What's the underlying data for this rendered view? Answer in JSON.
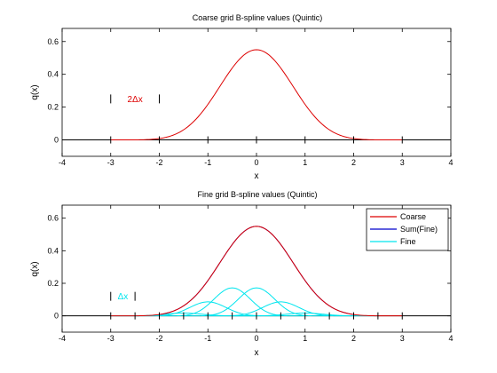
{
  "colors": {
    "coarse": "#dd0000",
    "sum": "#0000cc",
    "fine": "#00e5ee",
    "axis": "#000000"
  },
  "chart_data": [
    {
      "type": "line",
      "title": "Coarse grid B-spline values (Quintic)",
      "xlabel": "x",
      "ylabel": "q(x)",
      "xlim": [
        -4,
        4
      ],
      "ylim": [
        -0.1,
        0.68
      ],
      "xticks": [
        -4,
        -3,
        -2,
        -1,
        0,
        1,
        2,
        3,
        4
      ],
      "xtick_labels": [
        "-4",
        "-3",
        "-2",
        "-1",
        "0",
        "1",
        "2",
        "3",
        "4"
      ],
      "yticks": [
        0,
        0.2,
        0.4,
        0.6
      ],
      "ytick_labels": [
        "0",
        "0.2",
        "0.4",
        "0.6"
      ],
      "grid": false,
      "legend": false,
      "series": [
        {
          "kind": "coarse",
          "h": 1,
          "center": 0
        }
      ],
      "grid_nodes": [
        -3,
        -2,
        -1,
        0,
        1,
        2,
        3
      ],
      "annotation": {
        "text": "2Δx",
        "color": "#dd0000",
        "bracket": [
          -3,
          -2
        ],
        "y": 0.25
      }
    },
    {
      "type": "line",
      "title": "Fine grid B-spline values (Quintic)",
      "xlabel": "x",
      "ylabel": "q(x)",
      "xlim": [
        -4,
        4
      ],
      "ylim": [
        -0.1,
        0.68
      ],
      "xticks": [
        -4,
        -3,
        -2,
        -1,
        0,
        1,
        2,
        3,
        4
      ],
      "xtick_labels": [
        "-4",
        "-3",
        "-2",
        "-1",
        "0",
        "1",
        "2",
        "3",
        "4"
      ],
      "yticks": [
        0,
        0.2,
        0.4,
        0.6
      ],
      "ytick_labels": [
        "0",
        "0.2",
        "0.4",
        "0.6"
      ],
      "grid": false,
      "legend": true,
      "legend_position": "top-right",
      "legend_entries": [
        {
          "label": "Coarse",
          "kind": "coarse"
        },
        {
          "label": "Sum(Fine)",
          "kind": "sum"
        },
        {
          "label": "Fine",
          "kind": "fine"
        }
      ],
      "series": [
        {
          "kind": "coarse",
          "h": 1,
          "center": 0
        },
        {
          "kind": "sum",
          "h": 1,
          "center": 0
        },
        {
          "kind": "fine",
          "h": 0.5,
          "center": -1.5,
          "scale": 0.03125
        },
        {
          "kind": "fine",
          "h": 0.5,
          "center": -1.0,
          "scale": 0.15625
        },
        {
          "kind": "fine",
          "h": 0.5,
          "center": -0.5,
          "scale": 0.3125
        },
        {
          "kind": "fine",
          "h": 0.5,
          "center": 0.0,
          "scale": 0.3125
        },
        {
          "kind": "fine",
          "h": 0.5,
          "center": 0.5,
          "scale": 0.15625
        },
        {
          "kind": "fine",
          "h": 0.5,
          "center": 1.0,
          "scale": 0.03125
        },
        {
          "kind": "fine",
          "h": 0.5,
          "center": -1.0,
          "scale": 0.15625
        }
      ],
      "grid_nodes": [
        -3,
        -2.5,
        -2,
        -1.5,
        -1,
        -0.5,
        0,
        0.5,
        1,
        1.5,
        2,
        2.5,
        3
      ],
      "annotation": {
        "text": "Δx",
        "color": "#00e5ee",
        "bracket": [
          -3,
          -2.5
        ],
        "y": 0.12
      }
    }
  ]
}
